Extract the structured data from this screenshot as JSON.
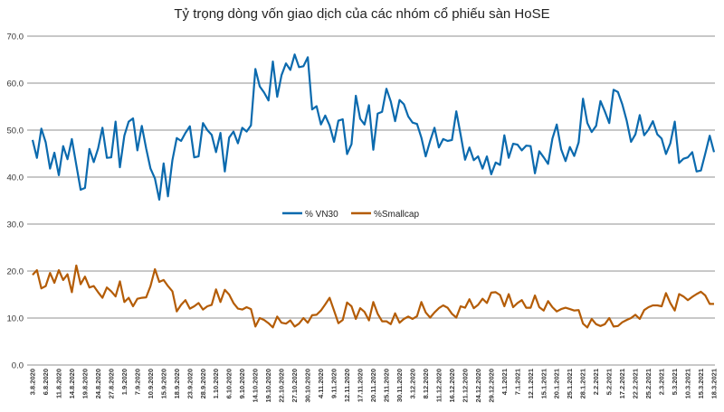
{
  "chart_data": {
    "type": "line",
    "title": "Tỷ trọng dòng vốn giao dịch của các nhóm cổ phiếu sàn HoSE",
    "xlabel": "",
    "ylabel": "",
    "ylim": [
      0,
      70
    ],
    "yticks": [
      "0.0",
      "10.0",
      "20.0",
      "30.0",
      "40.0",
      "50.0",
      "60.0",
      "70.0"
    ],
    "grid": "horizontal",
    "legend": "center",
    "x_tick_every_n_points": 3,
    "x_tick_labels": [
      "3.8.2020",
      "6.8.2020",
      "11.8.2020",
      "14.8.2020",
      "19.8.2020",
      "24.8.2020",
      "27.8.2020",
      "1.9.2020",
      "7.9.2020",
      "10.9.2020",
      "15.9.2020",
      "18.9.2020",
      "23.9.2020",
      "28.9.2020",
      "1.10.2020",
      "6.10.2020",
      "9.10.2020",
      "14.10.2020",
      "19.10.2020",
      "22.10.2020",
      "27.10.2020",
      "30.10.2020",
      "4.11.2020",
      "9.11.2020",
      "12.11.2020",
      "17.11.2020",
      "20.11.2020",
      "25.11.2020",
      "30.11.2020",
      "3.12.2020",
      "8.12.2020",
      "11.12.2020",
      "16.12.2020",
      "21.12.2020",
      "24.12.2020",
      "29.12.2020",
      "4.1.2021",
      "7.1.2021",
      "12.1.2021",
      "15.1.2021",
      "20.1.2021",
      "25.1.2021",
      "28.1.2021",
      "2.2.2021",
      "5.2.2021",
      "17.2.2021",
      "22.2.2021",
      "25.2.2021",
      "2.3.2021",
      "5.3.2021",
      "10.3.2021",
      "15.3.2021",
      "18.3.2021"
    ],
    "series": [
      {
        "name": "% VN30",
        "color": "#0b6aae",
        "values": [
          47.9,
          44.1,
          50.3,
          47.4,
          41.8,
          45.2,
          40.4,
          46.6,
          43.8,
          48.1,
          42.6,
          37.3,
          37.7,
          46.0,
          43.2,
          46.1,
          50.5,
          44.1,
          44.2,
          51.8,
          42.1,
          48.8,
          51.8,
          52.5,
          45.7,
          50.9,
          46.1,
          41.8,
          39.7,
          35.2,
          42.9,
          35.9,
          43.6,
          48.3,
          47.7,
          49.4,
          50.8,
          44.2,
          44.4,
          51.5,
          50.0,
          49.0,
          45.3,
          49.4,
          41.2,
          48.4,
          49.7,
          47.2,
          50.5,
          49.7,
          51.0,
          63.0,
          59.3,
          58.0,
          56.3,
          64.6,
          57.1,
          61.7,
          64.2,
          62.8,
          66.1,
          63.4,
          63.6,
          65.5,
          54.4,
          55.1,
          51.2,
          53.1,
          51.0,
          47.5,
          52.0,
          52.3,
          44.9,
          47.0,
          57.3,
          52.4,
          51.2,
          55.3,
          45.8,
          53.5,
          53.9,
          58.8,
          56.1,
          51.9,
          56.4,
          55.5,
          52.9,
          51.6,
          51.3,
          48.4,
          44.4,
          47.7,
          50.5,
          46.3,
          48.1,
          47.7,
          47.9,
          54.0,
          49.0,
          43.7,
          46.3,
          43.6,
          44.4,
          41.8,
          44.4,
          40.6,
          43.1,
          42.6,
          48.9,
          44.1,
          47.1,
          46.9,
          45.7,
          46.7,
          46.6,
          40.8,
          45.5,
          44.2,
          42.8,
          48.2,
          51.2,
          45.9,
          43.4,
          46.4,
          44.5,
          47.4,
          56.7,
          51.5,
          49.6,
          50.9,
          56.2,
          54.0,
          51.5,
          58.6,
          58.1,
          55.5,
          52.0,
          47.5,
          49.1,
          53.2,
          48.9,
          50.1,
          51.9,
          49.1,
          48.2,
          44.9,
          47.2,
          51.8,
          43.0,
          43.9,
          44.2,
          45.3,
          41.2,
          41.4,
          45.0,
          48.8,
          45.3
        ]
      },
      {
        "name": "%Smallcap",
        "color": "#b45c06",
        "values": [
          19.2,
          20.2,
          16.3,
          16.8,
          19.6,
          17.5,
          20.2,
          18.1,
          19.3,
          15.5,
          21.2,
          17.2,
          18.8,
          16.5,
          16.8,
          15.5,
          14.3,
          16.5,
          15.7,
          14.6,
          17.8,
          13.4,
          14.3,
          12.5,
          14.1,
          14.3,
          14.4,
          16.8,
          20.4,
          17.7,
          18.1,
          16.8,
          15.7,
          11.4,
          12.8,
          13.8,
          12.0,
          12.5,
          13.2,
          11.8,
          12.5,
          12.8,
          16.1,
          13.4,
          16.0,
          15.0,
          13.2,
          12.0,
          11.8,
          12.3,
          11.9,
          8.2,
          10.0,
          9.6,
          8.9,
          8.0,
          10.3,
          9.0,
          8.8,
          9.5,
          8.2,
          8.8,
          10.0,
          9.0,
          10.6,
          10.7,
          11.6,
          12.9,
          14.3,
          11.6,
          8.9,
          9.6,
          13.3,
          12.5,
          9.8,
          12.1,
          11.3,
          9.5,
          13.4,
          10.9,
          9.3,
          9.3,
          8.7,
          11.0,
          9.0,
          9.8,
          10.3,
          9.8,
          10.4,
          13.4,
          11.2,
          10.1,
          11.2,
          12.1,
          12.7,
          12.2,
          10.9,
          10.1,
          12.5,
          12.2,
          14.0,
          12.1,
          12.8,
          14.1,
          13.2,
          15.4,
          15.5,
          14.9,
          12.5,
          15.1,
          12.3,
          13.2,
          13.8,
          12.2,
          12.2,
          14.8,
          12.3,
          11.6,
          13.6,
          12.3,
          11.4,
          11.9,
          12.2,
          11.9,
          11.6,
          11.7,
          8.8,
          8.0,
          9.8,
          8.7,
          8.3,
          8.7,
          10.0,
          8.2,
          8.3,
          9.1,
          9.6,
          10.0,
          10.7,
          9.8,
          11.7,
          12.3,
          12.7,
          12.7,
          12.5,
          15.3,
          13.2,
          11.6,
          15.1,
          14.6,
          13.8,
          14.5,
          15.1,
          15.6,
          14.8,
          13.0,
          13.0
        ]
      }
    ]
  }
}
